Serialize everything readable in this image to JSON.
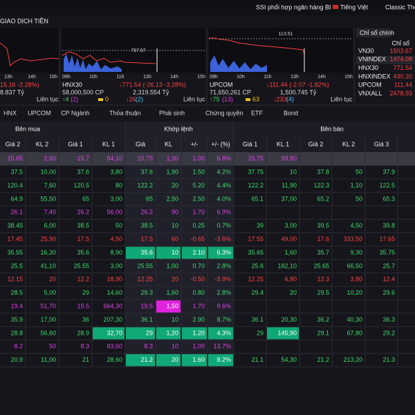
{
  "topbar": {
    "links": [
      "SSI phối hợp ngân hàng BI",
      "Tiếng Việt",
      "Classic The"
    ]
  },
  "section_title": "GIAO DỊCH TIỀN",
  "panels": [
    {
      "time_labels": [
        "13h",
        "14h",
        "15h"
      ],
      "change": "15.16 -2.28%)",
      "value": "8.837 Tỷ",
      "status": "Liên tục"
    },
    {
      "name": "HNX30",
      "change": "↓771.54 (-26.13 -3.28%)",
      "volume": "58,000,500 CP",
      "value": "2,319.554 Tỷ",
      "up": "↑4",
      "up_ceiling": "(2)",
      "flat": "0",
      "down": "↓26",
      "down_floor": "(2)",
      "status": "Liên tục",
      "chart_label": "797.67",
      "time_labels": [
        "09h",
        "10h",
        "11h",
        "13h",
        "14h",
        "15h"
      ]
    },
    {
      "name": "UPCOM",
      "change": "↓111.44 (-2.07 -1.82%)",
      "volume": "71,650,261 CP",
      "value": "1,500.745 Tỷ",
      "up": "↑75",
      "up_ceiling": "(13)",
      "flat": "63",
      "down": "↓233",
      "down_floor": "(4)",
      "status": "Liên tục",
      "chart_label": "113.51",
      "time_labels": [
        "09h",
        "10h",
        "11h",
        "13h",
        "14h",
        "15h"
      ]
    }
  ],
  "index_panel": {
    "title": "Chỉ số chính",
    "header": "Chỉ số",
    "rows": [
      [
        "VN30",
        "1503.67"
      ],
      [
        "VNINDEX",
        "1474.08"
      ],
      [
        "HNX30",
        "771.54"
      ],
      [
        "HNXINDEX",
        "430.20"
      ],
      [
        "UPCOM",
        "111.44"
      ],
      [
        "VNXALL",
        "2478.93"
      ]
    ]
  },
  "tabs": [
    "HNX",
    "UPCOM",
    "CP Ngành",
    "Thỏa thuận",
    "Phái sinh",
    "Chứng quyền",
    "ETF",
    "Bond"
  ],
  "table": {
    "groups": [
      "Bên mua",
      "Khớp lệnh",
      "Bên bán"
    ],
    "columns": [
      "Giá 2",
      "KL 2",
      "Giá 1",
      "KL 1",
      "Giá",
      "KL",
      "+/-",
      "+/- (%)",
      "Giá 1",
      "KL 1",
      "Giá 2",
      "KL 2",
      "Giá 3"
    ],
    "rows": [
      {
        "color": "#e040e8",
        "cells": [
          "15.65",
          "2,60",
          "15.7",
          "84,10",
          "15.75",
          "1,30",
          "1.00",
          "6.8%",
          "15.75",
          "99,80",
          null,
          null,
          null
        ]
      },
      {
        "color": "#3ddc6a",
        "cells": [
          "37.5",
          "10,00",
          "37.6",
          "3,80",
          "37.6",
          "1,90",
          "1.50",
          "4.2%",
          "37.75",
          "10",
          "37.8",
          "50",
          "37.9"
        ]
      },
      {
        "color": "#3ddc6a",
        "cells": [
          "120.4",
          "7,60",
          "120.5",
          "80",
          "122.2",
          "20",
          "5.20",
          "4.4%",
          "122.2",
          "11,90",
          "122.3",
          "1,10",
          "122.5"
        ]
      },
      {
        "color": "#3ddc6a",
        "cells": [
          "64.9",
          "55,50",
          "65",
          "3,00",
          "65",
          "2,50",
          "2.50",
          "4.0%",
          "65.1",
          "37,00",
          "65.2",
          "50",
          "65.3"
        ]
      },
      {
        "color": "#e040e8",
        "cells": [
          "26.1",
          "7,40",
          "26.2",
          "56,00",
          "26.2",
          "90",
          "1.70",
          "6.9%",
          null,
          null,
          null,
          null,
          null
        ]
      },
      {
        "color": "#3ddc6a",
        "cells": [
          "38.45",
          "6,00",
          "38.5",
          "50",
          "38.5",
          "10",
          "0.25",
          "0.7%",
          "39",
          "3,00",
          "39.5",
          "4,50",
          "39.8"
        ]
      },
      {
        "color": "#ff4242",
        "cells": [
          "17.45",
          "25,90",
          "17.5",
          "4,50",
          "17.5",
          "60",
          "-0.65",
          "-3.6%",
          "17.55",
          "49,00",
          "17.6",
          "333,50",
          "17.65"
        ]
      },
      {
        "color": "#3ddc6a",
        "cells": [
          "35.55",
          "16,30",
          "35.6",
          "8,90",
          "35.6",
          "10",
          "2.10",
          "6.3%",
          "35.65",
          "1,60",
          "35.7",
          "9,30",
          "35.75"
        ]
      },
      {
        "color": "#3ddc6a",
        "cells": [
          "25.5",
          "41,10",
          "25.55",
          "3,00",
          "25.55",
          "1,00",
          "0.70",
          "2.8%",
          "25.6",
          "182,10",
          "25.65",
          "66,50",
          "25.7"
        ]
      },
      {
        "color": "#ff4242",
        "cells": [
          "12.15",
          "20",
          "12.2",
          "18,90",
          "12.25",
          "20",
          "-0.50",
          "-3.9%",
          "12.25",
          "6,80",
          "12.3",
          "3,80",
          "12.4"
        ]
      },
      {
        "color": "#3ddc6a",
        "cells": [
          "28.5",
          "5,00",
          "29",
          "14,60",
          "29.3",
          "1,60",
          "0.80",
          "2.8%",
          "29.4",
          "20",
          "29.5",
          "10,20",
          "29.6"
        ]
      },
      {
        "color": "#e040e8",
        "cells": [
          "19.4",
          "51,70",
          "19.5",
          "664,30",
          "19.5",
          "1,50",
          "1.70",
          "9.6%",
          null,
          null,
          null,
          null,
          null
        ]
      },
      {
        "color": "#3ddc6a",
        "cells": [
          "35.9",
          "17,00",
          "36",
          "207,30",
          "36.1",
          "10",
          "2.90",
          "8.7%",
          "36.1",
          "20,30",
          "36.2",
          "40,30",
          "36.3"
        ]
      },
      {
        "color": "#3ddc6a",
        "cells": [
          "28.8",
          "56,60",
          "28.9",
          "32,70",
          "29",
          "1,20",
          "1.20",
          "4.3%",
          "29",
          "145,90",
          "29.1",
          "67,80",
          "29.2"
        ]
      },
      {
        "color": "#e040e8",
        "cells": [
          "8.2",
          "50",
          "8.3",
          "83,60",
          "8.3",
          "10",
          "1.00",
          "13.7%",
          null,
          null,
          null,
          null,
          null
        ]
      },
      {
        "color": "#3ddc6a",
        "cells": [
          "20.9",
          "11,00",
          "21",
          "28,60",
          "21.2",
          "20",
          "1.60",
          "8.2%",
          "21.1",
          "54,30",
          "21.2",
          "213,20",
          "21.3"
        ]
      }
    ],
    "highlights": [
      {
        "row": 7,
        "cols": [
          4,
          5,
          6,
          7
        ],
        "color": "#11a877"
      },
      {
        "row": 11,
        "cols": [
          5
        ],
        "color": "#e021e0"
      },
      {
        "row": 13,
        "cols": [
          3,
          4,
          5,
          6,
          7,
          9
        ],
        "color": "#11a877"
      },
      {
        "row": 15,
        "cols": [
          4,
          5,
          6,
          7
        ],
        "color": "#11a877"
      }
    ]
  }
}
